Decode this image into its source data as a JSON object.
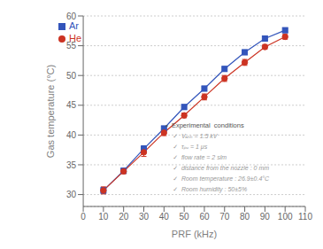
{
  "chart_data": {
    "type": "line",
    "x": [
      10,
      20,
      30,
      40,
      50,
      60,
      70,
      80,
      90,
      100
    ],
    "series": [
      {
        "name": "Ar",
        "color": "#3355bb",
        "marker": "square",
        "values": [
          30.7,
          34.0,
          37.7,
          41.1,
          44.7,
          47.8,
          51.1,
          53.9,
          56.2,
          57.6
        ],
        "error": [
          0.5,
          0.4,
          0.5,
          0.4,
          0.4,
          0.4,
          0.4,
          0.4,
          0.4,
          0.4
        ]
      },
      {
        "name": "He",
        "color": "#cc3322",
        "marker": "circle",
        "values": [
          30.7,
          33.9,
          37.1,
          40.4,
          43.3,
          46.4,
          49.5,
          52.2,
          54.8,
          56.5
        ],
        "error": [
          0.6,
          0.4,
          0.7,
          0.5,
          0.4,
          0.5,
          0.5,
          0.5,
          0.4,
          0.4
        ]
      }
    ],
    "xlabel": "PRF (kHz)",
    "ylabel": "Gas temperature (°C)",
    "xlim": [
      0,
      110
    ],
    "ylim": [
      28,
      60
    ],
    "xticks": [
      0,
      10,
      20,
      30,
      40,
      50,
      60,
      70,
      80,
      90,
      100,
      110
    ],
    "yticks": [
      30,
      35,
      40,
      45,
      50,
      55,
      60
    ],
    "grid": "y",
    "legend": "upper left",
    "annotations": [
      "•  Experimental  conditions",
      "✓  Vₐₕₕ = 1.5 kV",
      "✓  τₚᵤ = 1 μs",
      "✓  flow rate = 2 slm",
      "✓  distance from the nozzle : 0 mm",
      "✓  Room temperature : 26.9±0.4°C",
      "✓  Room humidity : 50±5%"
    ]
  }
}
